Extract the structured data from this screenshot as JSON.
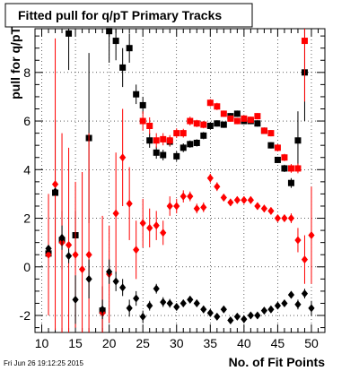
{
  "chart_data": {
    "type": "scatter",
    "title": "Fitted pull for q/pT Primary Tracks",
    "xlabel": "No. of Fit Points",
    "ylabel": "pull for q/pT",
    "xlim": [
      9,
      52
    ],
    "ylim": [
      -2.7,
      9.8
    ],
    "x_ticks": [
      10,
      15,
      20,
      25,
      30,
      35,
      40,
      45,
      50
    ],
    "y_ticks": [
      -2,
      0,
      2,
      4,
      6,
      8
    ],
    "grid": true,
    "timestamp": "Fri Jun 26 19:12:25 2015",
    "series": [
      {
        "marker": "square",
        "color": "#000000",
        "points": [
          [
            11,
            0.55,
            0.15
          ],
          [
            12,
            3.05,
            3.0
          ],
          [
            13,
            1.1,
            1.2
          ],
          [
            14,
            9.6,
            1.5
          ],
          [
            15,
            1.3,
            1.0
          ],
          [
            17,
            5.3,
            3.5
          ],
          [
            19,
            -1.8,
            1.0
          ],
          [
            20,
            9.7,
            1.3
          ],
          [
            21,
            9.3,
            0.8
          ],
          [
            22,
            8.2,
            0.8
          ],
          [
            23,
            9.0,
            0.6
          ],
          [
            24,
            7.1,
            0.4
          ],
          [
            25,
            6.65,
            0.35
          ],
          [
            26,
            5.2,
            0.3
          ],
          [
            27,
            4.7,
            0.25
          ],
          [
            28,
            4.6,
            0.22
          ],
          [
            29,
            5.15,
            0.2
          ],
          [
            30,
            4.55,
            0.2
          ],
          [
            31,
            4.9,
            0.18
          ],
          [
            32,
            5.05,
            0.15
          ],
          [
            33,
            5.1,
            0.15
          ],
          [
            34,
            5.4,
            0.15
          ],
          [
            35,
            5.8,
            0.15
          ],
          [
            36,
            5.9,
            0.13
          ],
          [
            37,
            5.85,
            0.13
          ],
          [
            38,
            6.2,
            0.13
          ],
          [
            39,
            6.3,
            0.13
          ],
          [
            40,
            6.0,
            0.13
          ],
          [
            41,
            6.0,
            0.13
          ],
          [
            42,
            5.9,
            0.13
          ],
          [
            43,
            5.6,
            0.13
          ],
          [
            44,
            5.0,
            0.13
          ],
          [
            45,
            4.4,
            0.13
          ],
          [
            46,
            4.05,
            0.15
          ],
          [
            47,
            3.45,
            0.2
          ],
          [
            48,
            5.2,
            1.2
          ],
          [
            49,
            8.0,
            2.0
          ]
        ]
      },
      {
        "marker": "square",
        "color": "#ff0000",
        "points": [
          [
            25,
            6.0,
            0.4
          ],
          [
            26,
            5.8,
            0.35
          ],
          [
            27,
            5.2,
            0.3
          ],
          [
            28,
            5.25,
            0.25
          ],
          [
            29,
            5.2,
            0.22
          ],
          [
            30,
            5.5,
            0.2
          ],
          [
            31,
            5.5,
            0.18
          ],
          [
            32,
            6.0,
            0.18
          ],
          [
            33,
            5.9,
            0.15
          ],
          [
            34,
            5.85,
            0.15
          ],
          [
            35,
            6.75,
            0.15
          ],
          [
            36,
            6.6,
            0.15
          ],
          [
            37,
            6.3,
            0.13
          ],
          [
            38,
            6.1,
            0.13
          ],
          [
            39,
            6.0,
            0.13
          ],
          [
            40,
            6.1,
            0.13
          ],
          [
            41,
            6.05,
            0.13
          ],
          [
            42,
            6.2,
            0.13
          ],
          [
            43,
            5.6,
            0.13
          ],
          [
            44,
            5.5,
            0.13
          ],
          [
            45,
            4.9,
            0.15
          ],
          [
            46,
            4.5,
            0.15
          ],
          [
            47,
            4.05,
            0.18
          ],
          [
            48,
            4.05,
            0.2
          ],
          [
            49,
            9.3,
            2.5
          ]
        ]
      },
      {
        "marker": "diamond",
        "color": "#ff0000",
        "points": [
          [
            11,
            0.5,
            2.5
          ],
          [
            12,
            3.4,
            6.0
          ],
          [
            13,
            1.0,
            4.5
          ],
          [
            14,
            0.9,
            4.0
          ],
          [
            15,
            0.5,
            3.0
          ],
          [
            16,
            -0.1,
            4.0
          ],
          [
            17,
            0.5,
            5.0
          ],
          [
            19,
            -1.9,
            4.0
          ],
          [
            20,
            -0.3,
            2.0
          ],
          [
            21,
            2.2,
            2.5
          ],
          [
            22,
            4.5,
            2.0
          ],
          [
            23,
            2.6,
            1.5
          ],
          [
            24,
            0.7,
            1.2
          ],
          [
            25,
            1.8,
            1.0
          ],
          [
            26,
            1.6,
            0.8
          ],
          [
            27,
            1.7,
            0.6
          ],
          [
            28,
            1.4,
            0.5
          ],
          [
            29,
            2.5,
            0.4
          ],
          [
            30,
            2.5,
            0.3
          ],
          [
            31,
            2.9,
            0.25
          ],
          [
            32,
            2.9,
            0.2
          ],
          [
            33,
            2.4,
            0.2
          ],
          [
            34,
            2.45,
            0.2
          ],
          [
            35,
            3.65,
            0.18
          ],
          [
            36,
            3.3,
            0.18
          ],
          [
            37,
            2.85,
            0.15
          ],
          [
            38,
            2.65,
            0.15
          ],
          [
            39,
            2.75,
            0.15
          ],
          [
            40,
            2.75,
            0.15
          ],
          [
            41,
            2.75,
            0.15
          ],
          [
            42,
            2.5,
            0.15
          ],
          [
            43,
            2.4,
            0.15
          ],
          [
            44,
            2.3,
            0.15
          ],
          [
            45,
            2.0,
            0.15
          ],
          [
            46,
            2.0,
            0.15
          ],
          [
            47,
            2.0,
            0.2
          ],
          [
            48,
            1.1,
            0.5
          ],
          [
            49,
            0.3,
            1.0
          ],
          [
            50,
            1.3,
            2.0
          ]
        ]
      },
      {
        "marker": "diamond",
        "color": "#000000",
        "points": [
          [
            11,
            0.75,
            0.15
          ],
          [
            12,
            3.1,
            0.15
          ],
          [
            13,
            1.2,
            0.5
          ],
          [
            14,
            0.45,
            0.3
          ],
          [
            15,
            -1.35,
            1.0
          ],
          [
            17,
            -0.5,
            0.8
          ],
          [
            19,
            -1.75,
            0.4
          ],
          [
            20,
            -0.2,
            0.5
          ],
          [
            21,
            -0.6,
            0.4
          ],
          [
            22,
            -0.85,
            0.35
          ],
          [
            23,
            -1.7,
            0.35
          ],
          [
            24,
            -1.3,
            0.3
          ],
          [
            25,
            -2.05,
            0.25
          ],
          [
            26,
            -1.6,
            0.2
          ],
          [
            27,
            -0.9,
            0.2
          ],
          [
            28,
            -1.45,
            0.2
          ],
          [
            29,
            -1.5,
            0.18
          ],
          [
            30,
            -1.65,
            0.15
          ],
          [
            31,
            -1.5,
            0.15
          ],
          [
            32,
            -1.35,
            0.15
          ],
          [
            33,
            -1.5,
            0.15
          ],
          [
            34,
            -1.75,
            0.15
          ],
          [
            35,
            -1.9,
            0.15
          ],
          [
            36,
            -2.05,
            0.12
          ],
          [
            37,
            -1.75,
            0.12
          ],
          [
            38,
            -2.2,
            0.12
          ],
          [
            39,
            -2.05,
            0.12
          ],
          [
            40,
            -2.15,
            0.12
          ],
          [
            41,
            -2.0,
            0.12
          ],
          [
            42,
            -2.0,
            0.12
          ],
          [
            43,
            -1.8,
            0.12
          ],
          [
            44,
            -1.75,
            0.12
          ],
          [
            45,
            -1.6,
            0.12
          ],
          [
            46,
            -1.5,
            0.12
          ],
          [
            47,
            -1.15,
            0.15
          ],
          [
            48,
            -1.55,
            0.2
          ],
          [
            49,
            -1.1,
            0.2
          ],
          [
            50,
            -1.7,
            0.3
          ]
        ]
      }
    ]
  }
}
